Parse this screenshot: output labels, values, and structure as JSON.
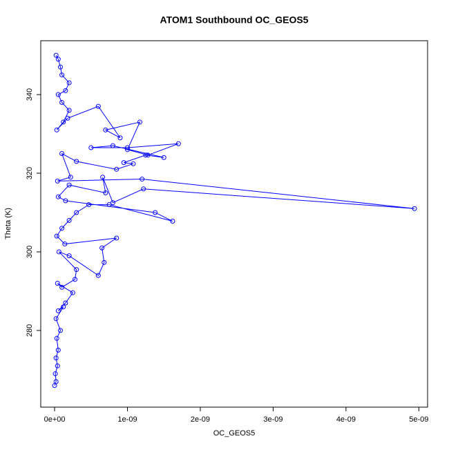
{
  "chart_data": {
    "type": "line",
    "title": "ATOM1 Southbound OC_GEOS5",
    "x_label": "OC_GEOS5",
    "y_label": "Theta (K)",
    "series": [
      {
        "name": "OC_GEOS5",
        "color": "#0000ff",
        "x": [
          2e-11,
          5e-11,
          8e-11,
          1e-10,
          2e-10,
          1.5e-10,
          5e-11,
          1e-10,
          2e-10,
          1.2e-10,
          3e-11,
          1.8e-10,
          6e-10,
          9e-10,
          7e-10,
          1.17e-09,
          1e-09,
          1.28e-09,
          1.7e-09,
          1e-09,
          5e-10,
          8e-10,
          1.5e-09,
          1.25e-09,
          9.5e-10,
          1.08e-09,
          8.5e-10,
          3e-10,
          1e-10,
          2.2e-10,
          4e-11,
          1.2e-09,
          4.94e-09,
          1.22e-09,
          8e-10,
          6.6e-10,
          7e-10,
          2e-10,
          5e-11,
          1.5e-10,
          1.38e-09,
          1.62e-09,
          7.5e-10,
          4.7e-10,
          3e-10,
          2e-10,
          1e-10,
          3e-11,
          1.4e-10,
          8.5e-10,
          6.5e-10,
          6.8e-10,
          6e-10,
          2e-10,
          6e-11,
          3e-10,
          2.8e-10,
          1e-10,
          4e-11,
          2.5e-10,
          1.5e-10,
          5e-11,
          1.2e-10,
          2e-11,
          8e-11,
          3e-11,
          5e-11,
          2e-11,
          4e-11,
          1e-11,
          2e-11,
          0
        ],
        "values": [
          350,
          349,
          347,
          345,
          343,
          341,
          340,
          338,
          336,
          333,
          331,
          334,
          337,
          329,
          331,
          333,
          326,
          324.6,
          327.5,
          326.5,
          326.5,
          327,
          324,
          324.6,
          322.7,
          322.4,
          321,
          323,
          325,
          319,
          318,
          318.5,
          311,
          316,
          312.5,
          319,
          315,
          317,
          314,
          313,
          310,
          307.8,
          312,
          312,
          310,
          308,
          306,
          304,
          302,
          303.5,
          301,
          297.3,
          294,
          299,
          300,
          295.5,
          293,
          291,
          292,
          289.6,
          287,
          285,
          286,
          283,
          280,
          278,
          275,
          273,
          271,
          269,
          267,
          266
        ]
      }
    ],
    "xlim": [
      -1.9e-10,
      5.12e-09
    ],
    "ylim": [
      260.5,
      353.7
    ],
    "xticks": [
      {
        "value": 0,
        "label": "0e+00"
      },
      {
        "value": 1e-09,
        "label": "1e-09"
      },
      {
        "value": 2e-09,
        "label": "2e-09"
      },
      {
        "value": 3e-09,
        "label": "3e-09"
      },
      {
        "value": 4e-09,
        "label": "4e-09"
      },
      {
        "value": 5e-09,
        "label": "5e-09"
      }
    ],
    "yticks": [
      280,
      300,
      320,
      340
    ]
  }
}
